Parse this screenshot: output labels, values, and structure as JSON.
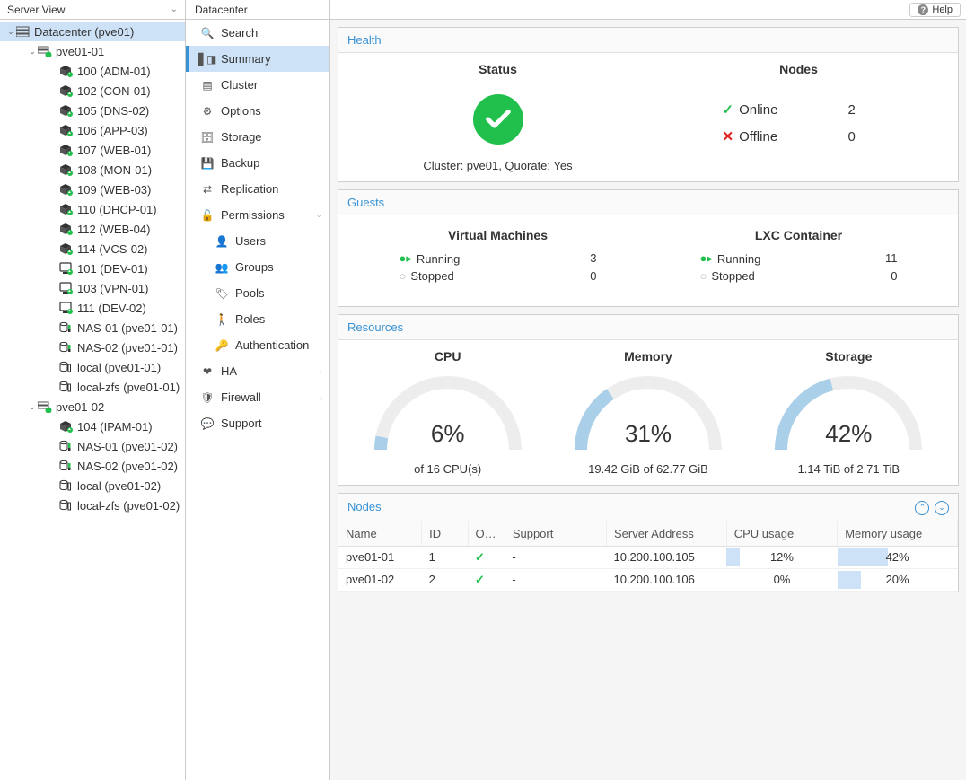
{
  "view_select": "Server View",
  "header_title": "Datacenter",
  "help_label": "Help",
  "colors": {
    "accent": "#3892d4",
    "green": "#21bf4b",
    "red": "#e02020",
    "selected_bg": "#cde2f6",
    "gauge_track": "#ededed",
    "gauge_fill": "#a9cfe9"
  },
  "tree": [
    {
      "indent": 6,
      "expander": "v",
      "icon": "datacenter",
      "label": "Datacenter (pve01)",
      "selected": true
    },
    {
      "indent": 30,
      "expander": "v",
      "icon": "node-green",
      "label": "pve01-01"
    },
    {
      "indent": 54,
      "expander": "",
      "icon": "lxc-run",
      "label": "100 (ADM-01)"
    },
    {
      "indent": 54,
      "expander": "",
      "icon": "lxc-run",
      "label": "102 (CON-01)"
    },
    {
      "indent": 54,
      "expander": "",
      "icon": "lxc-run",
      "label": "105 (DNS-02)"
    },
    {
      "indent": 54,
      "expander": "",
      "icon": "lxc-run",
      "label": "106 (APP-03)"
    },
    {
      "indent": 54,
      "expander": "",
      "icon": "lxc-run",
      "label": "107 (WEB-01)"
    },
    {
      "indent": 54,
      "expander": "",
      "icon": "lxc-run",
      "label": "108 (MON-01)"
    },
    {
      "indent": 54,
      "expander": "",
      "icon": "lxc-run",
      "label": "109 (WEB-03)"
    },
    {
      "indent": 54,
      "expander": "",
      "icon": "lxc-run",
      "label": "110 (DHCP-01)"
    },
    {
      "indent": 54,
      "expander": "",
      "icon": "lxc-run",
      "label": "112 (WEB-04)"
    },
    {
      "indent": 54,
      "expander": "",
      "icon": "lxc-run",
      "label": "114 (VCS-02)"
    },
    {
      "indent": 54,
      "expander": "",
      "icon": "vm-run",
      "label": "101 (DEV-01)"
    },
    {
      "indent": 54,
      "expander": "",
      "icon": "vm-run",
      "label": "103 (VPN-01)"
    },
    {
      "indent": 54,
      "expander": "",
      "icon": "vm-run",
      "label": "111 (DEV-02)"
    },
    {
      "indent": 54,
      "expander": "",
      "icon": "storage-active",
      "label": "NAS-01 (pve01-01)"
    },
    {
      "indent": 54,
      "expander": "",
      "icon": "storage-active",
      "label": "NAS-02 (pve01-01)"
    },
    {
      "indent": 54,
      "expander": "",
      "icon": "storage",
      "label": "local (pve01-01)"
    },
    {
      "indent": 54,
      "expander": "",
      "icon": "storage",
      "label": "local-zfs (pve01-01)"
    },
    {
      "indent": 30,
      "expander": "v",
      "icon": "node-green",
      "label": "pve01-02"
    },
    {
      "indent": 54,
      "expander": "",
      "icon": "lxc-run",
      "label": "104 (IPAM-01)"
    },
    {
      "indent": 54,
      "expander": "",
      "icon": "storage-active",
      "label": "NAS-01 (pve01-02)"
    },
    {
      "indent": 54,
      "expander": "",
      "icon": "storage-active",
      "label": "NAS-02 (pve01-02)"
    },
    {
      "indent": 54,
      "expander": "",
      "icon": "storage",
      "label": "local (pve01-02)"
    },
    {
      "indent": 54,
      "expander": "",
      "icon": "storage",
      "label": "local-zfs (pve01-02)"
    }
  ],
  "menu": [
    {
      "label": "Search",
      "icon": "search",
      "indent": 12
    },
    {
      "label": "Summary",
      "icon": "book",
      "indent": 12,
      "active": true
    },
    {
      "label": "Cluster",
      "icon": "cluster",
      "indent": 12
    },
    {
      "label": "Options",
      "icon": "gear",
      "indent": 12
    },
    {
      "label": "Storage",
      "icon": "db",
      "indent": 12
    },
    {
      "label": "Backup",
      "icon": "floppy",
      "indent": 12
    },
    {
      "label": "Replication",
      "icon": "repl",
      "indent": 12
    },
    {
      "label": "Permissions",
      "icon": "unlock",
      "indent": 12,
      "chev": true
    },
    {
      "label": "Users",
      "icon": "user",
      "indent": 28
    },
    {
      "label": "Groups",
      "icon": "users",
      "indent": 28
    },
    {
      "label": "Pools",
      "icon": "tags",
      "indent": 28
    },
    {
      "label": "Roles",
      "icon": "male",
      "indent": 28
    },
    {
      "label": "Authentication",
      "icon": "key",
      "indent": 28
    },
    {
      "label": "HA",
      "icon": "heart",
      "indent": 12,
      "chev_r": true
    },
    {
      "label": "Firewall",
      "icon": "shield",
      "indent": 12,
      "chev_r": true
    },
    {
      "label": "Support",
      "icon": "support",
      "indent": 12
    }
  ],
  "health": {
    "title": "Health",
    "status_label": "Status",
    "cluster_line": "Cluster: pve01, Quorate: Yes",
    "nodes_label": "Nodes",
    "online_label": "Online",
    "online_count": "2",
    "offline_label": "Offline",
    "offline_count": "0"
  },
  "guests": {
    "title": "Guests",
    "vm_label": "Virtual Machines",
    "lxc_label": "LXC Container",
    "running_label": "Running",
    "stopped_label": "Stopped",
    "vm_running": "3",
    "vm_stopped": "0",
    "lxc_running": "11",
    "lxc_stopped": "0"
  },
  "resources": {
    "title": "Resources",
    "cpu": {
      "label": "CPU",
      "value": "6%",
      "sub": "of 16 CPU(s)",
      "pct": 6
    },
    "mem": {
      "label": "Memory",
      "value": "31%",
      "sub": "19.42 GiB of 62.77 GiB",
      "pct": 31
    },
    "storage": {
      "label": "Storage",
      "value": "42%",
      "sub": "1.14 TiB of 2.71 TiB",
      "pct": 42
    }
  },
  "nodes": {
    "title": "Nodes",
    "columns": [
      "Name",
      "ID",
      "O…",
      "Support",
      "Server Address",
      "CPU usage",
      "Memory usage"
    ],
    "rows": [
      {
        "name": "pve01-01",
        "id": "1",
        "support": "-",
        "addr": "10.200.100.105",
        "cpu_txt": "12%",
        "cpu_pct": 12,
        "mem_txt": "42%",
        "mem_pct": 42
      },
      {
        "name": "pve01-02",
        "id": "2",
        "support": "-",
        "addr": "10.200.100.106",
        "cpu_txt": "0%",
        "cpu_pct": 0,
        "mem_txt": "20%",
        "mem_pct": 20
      }
    ]
  }
}
